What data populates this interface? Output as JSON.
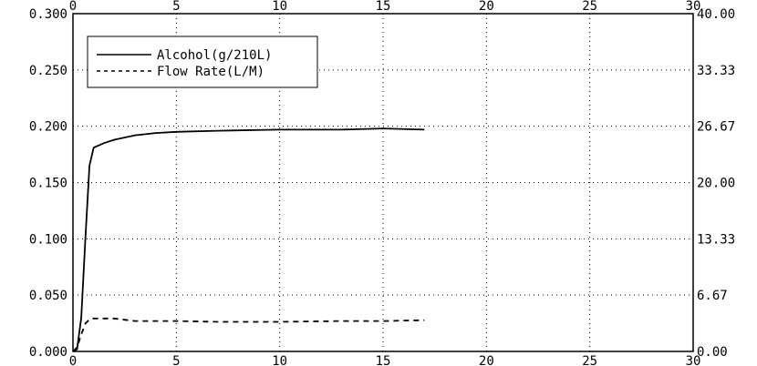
{
  "chart_data": {
    "type": "line",
    "title": "",
    "xlabel": "",
    "ylabel": "",
    "xlim": [
      0,
      30
    ],
    "ylim": [
      0,
      0.3
    ],
    "y2lim": [
      0,
      40
    ],
    "x_ticks": [
      "0",
      "5",
      "10",
      "15",
      "20",
      "25",
      "30"
    ],
    "x_ticks_top": [
      "0",
      "5",
      "10",
      "15",
      "20",
      "25",
      "30"
    ],
    "y_ticks": [
      "0.000",
      "0.050",
      "0.100",
      "0.150",
      "0.200",
      "0.250",
      "0.300"
    ],
    "y2_ticks": [
      "0.00",
      "6.67",
      "13.33",
      "20.00",
      "26.67",
      "33.33",
      "40.00"
    ],
    "grid": true,
    "legend_position": "top-left",
    "series": [
      {
        "name": "Alcohol(g/210L)",
        "axis": "left",
        "style": "solid",
        "x": [
          0,
          0.2,
          0.4,
          0.6,
          0.8,
          1.0,
          1.5,
          2.0,
          3.0,
          4.0,
          5.0,
          7.0,
          10.0,
          13.0,
          15.0,
          17.0
        ],
        "y": [
          0.0,
          0.002,
          0.03,
          0.1,
          0.165,
          0.181,
          0.185,
          0.188,
          0.192,
          0.194,
          0.195,
          0.196,
          0.197,
          0.197,
          0.198,
          0.197
        ]
      },
      {
        "name": "Flow Rate(L/M)",
        "axis": "right",
        "style": "dashed",
        "x": [
          0,
          0.2,
          0.4,
          0.6,
          0.8,
          1.0,
          2.0,
          3.0,
          5.0,
          7.0,
          10.0,
          13.0,
          15.0,
          17.0
        ],
        "y": [
          0.0,
          0.5,
          2.0,
          3.3,
          3.8,
          3.9,
          3.9,
          3.6,
          3.6,
          3.5,
          3.5,
          3.6,
          3.6,
          3.7
        ]
      }
    ]
  }
}
